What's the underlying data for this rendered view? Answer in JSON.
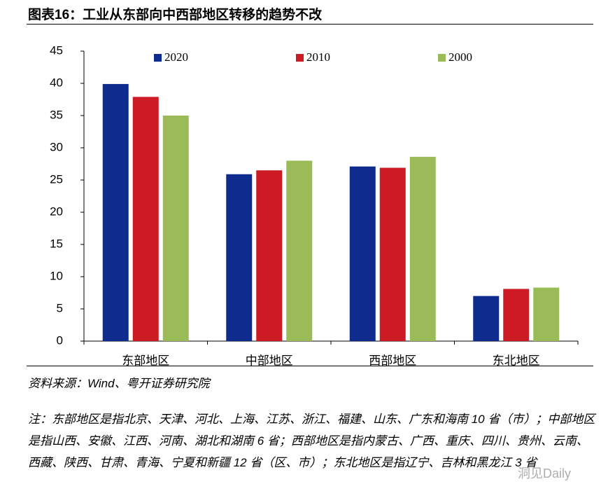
{
  "caption": "图表16：工业从东部向中西部地区转移的趋势不改",
  "source": "资料来源：Wind、粤开证券研究院",
  "note": "注：东部地区是指北京、天津、河北、上海、江苏、浙江、福建、山东、广东和海南 10 省（市）；中部地区是指山西、安徽、江西、河南、湖北和湖南 6 省；西部地区是指内蒙古、广西、重庆、四川、贵州、云南、西藏、陕西、甘肃、青海、宁夏和新疆 12 省（区、市）；东北地区是指辽宁、吉林和黑龙江 3 省",
  "watermark": "洞见Daily",
  "chart_data": {
    "type": "bar",
    "categories": [
      "东部地区",
      "中部地区",
      "西部地区",
      "东北地区"
    ],
    "series": [
      {
        "name": "2020",
        "color": "#0e2c8e",
        "values": [
          39.9,
          25.9,
          27.1,
          7.0
        ]
      },
      {
        "name": "2010",
        "color": "#cc1b25",
        "values": [
          37.9,
          26.5,
          26.9,
          8.1
        ]
      },
      {
        "name": "2000",
        "color": "#9bbb59",
        "values": [
          35.0,
          28.0,
          28.6,
          8.3
        ]
      }
    ],
    "ylim": [
      0,
      45
    ],
    "yticks": [
      0,
      5,
      10,
      15,
      20,
      25,
      30,
      35,
      40,
      45
    ],
    "legend": "top"
  }
}
